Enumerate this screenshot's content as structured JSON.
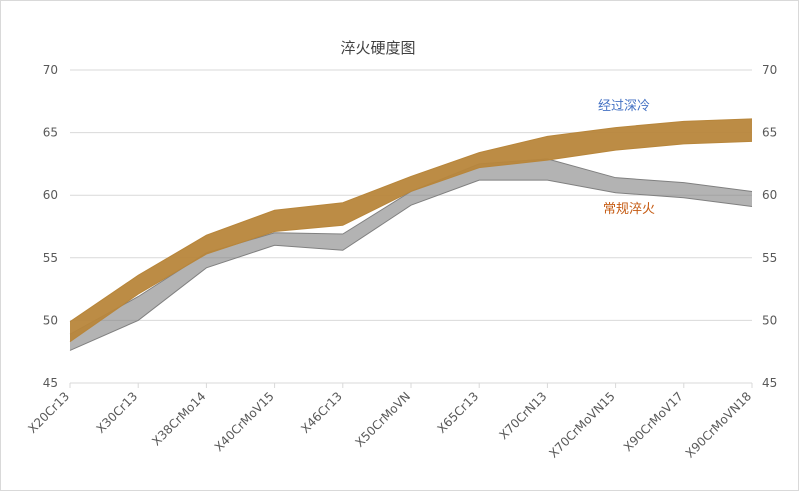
{
  "chart_data": {
    "type": "area",
    "title": "淬火硬度图",
    "categories": [
      "X20Cr13",
      "X30Cr13",
      "X38CrMo14",
      "X40CrMoV15",
      "X46Cr13",
      "X50CrMoVN",
      "X65Cr13",
      "X70CrN13",
      "X70CrMoVN15",
      "X90CrMoV17",
      "X90CrMoVN18"
    ],
    "ylim": [
      45,
      70
    ],
    "yticks": [
      45,
      50,
      55,
      60,
      65,
      70
    ],
    "grid": true,
    "series": [
      {
        "name": "常规淬火",
        "color": "#808080",
        "lower": [
          47.6,
          50.0,
          54.2,
          56.0,
          55.6,
          59.2,
          61.2,
          61.2,
          60.2,
          59.8,
          59.1
        ],
        "upper": [
          48.9,
          51.9,
          55.4,
          57.0,
          56.9,
          60.3,
          62.5,
          62.9,
          61.4,
          61.0,
          60.3
        ]
      },
      {
        "name": "经过深冷",
        "color": "#b8863b",
        "lower": [
          48.3,
          52.1,
          55.3,
          57.1,
          57.6,
          60.3,
          62.2,
          62.8,
          63.6,
          64.1,
          64.3
        ],
        "upper": [
          49.9,
          53.6,
          56.8,
          58.8,
          59.4,
          61.5,
          63.4,
          64.7,
          65.4,
          65.9,
          66.1
        ]
      }
    ],
    "annotations": [
      {
        "text": "经过深冷",
        "color": "#4472c4"
      },
      {
        "text": "常规淬火",
        "color": "#c55a11"
      }
    ]
  }
}
